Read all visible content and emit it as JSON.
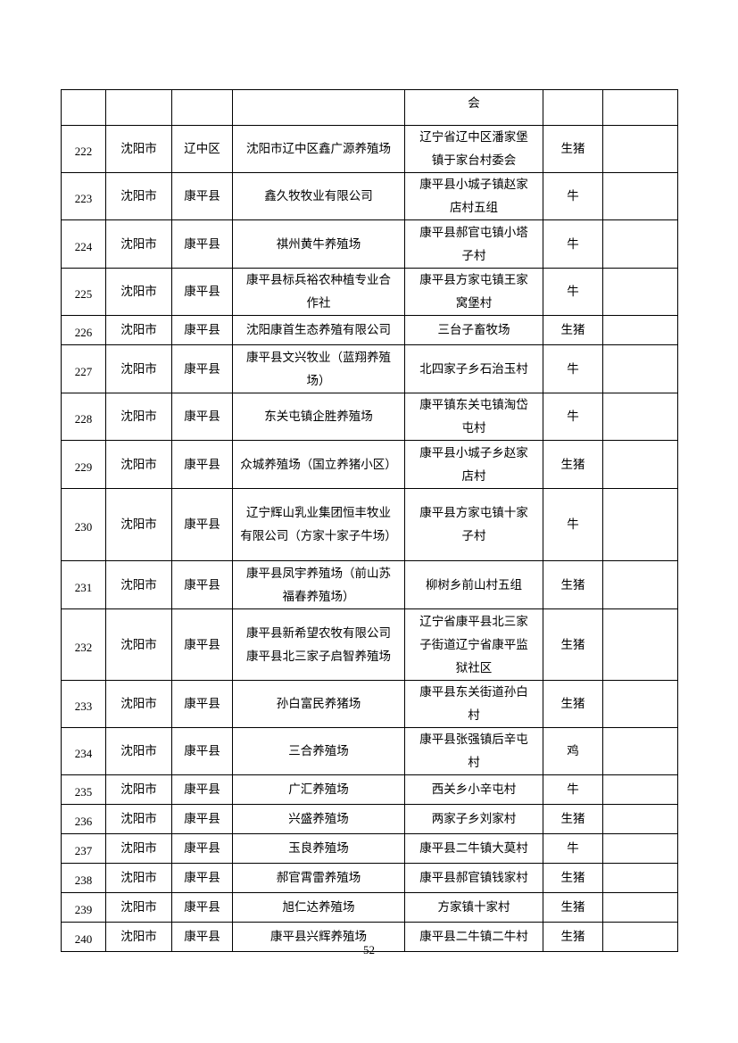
{
  "table": {
    "rows": [
      {
        "no": "",
        "city": "",
        "county": "",
        "name": "",
        "address": "会",
        "type": "",
        "note": "",
        "h": 40
      },
      {
        "no": "222",
        "city": "沈阳市",
        "county": "辽中区",
        "name": "沈阳市辽中区鑫广源养殖场",
        "address": "辽宁省辽中区潘家堡\n镇于家台村委会",
        "type": "生猪",
        "note": "",
        "h": 53
      },
      {
        "no": "223",
        "city": "沈阳市",
        "county": "康平县",
        "name": "鑫久牧牧业有限公司",
        "address": "康平县小城子镇赵家\n店村五组",
        "type": "牛",
        "note": "",
        "h": 53
      },
      {
        "no": "224",
        "city": "沈阳市",
        "county": "康平县",
        "name": "祺州黄牛养殖场",
        "address": "康平县郝官屯镇小塔\n子村",
        "type": "牛",
        "note": "",
        "h": 54
      },
      {
        "no": "225",
        "city": "沈阳市",
        "county": "康平县",
        "name": "康平县标兵裕农种植专业合\n作社",
        "address": "康平县方家屯镇王家\n窝堡村",
        "type": "牛",
        "note": "",
        "h": 53
      },
      {
        "no": "226",
        "city": "沈阳市",
        "county": "康平县",
        "name": "沈阳康首生态养殖有限公司",
        "address": "三台子畜牧场",
        "type": "生猪",
        "note": "",
        "h": 27
      },
      {
        "no": "227",
        "city": "沈阳市",
        "county": "康平县",
        "name": "康平县文兴牧业（蓝翔养殖\n场）",
        "address": "北四家子乡石治玉村",
        "type": "牛",
        "note": "",
        "h": 54
      },
      {
        "no": "228",
        "city": "沈阳市",
        "county": "康平县",
        "name": "东关屯镇企胜养殖场",
        "address": "康平镇东关屯镇淘岱\n屯村",
        "type": "牛",
        "note": "",
        "h": 53
      },
      {
        "no": "229",
        "city": "沈阳市",
        "county": "康平县",
        "name": "众城养殖场（国立养猪小区）\n ",
        "address": "康平县小城子乡赵家\n店村",
        "type": "生猪",
        "note": "",
        "h": 54
      },
      {
        "no": "230",
        "city": "沈阳市",
        "county": "康平县",
        "name": "辽宁辉山乳业集团恒丰牧业\n有限公司（方家十家子牛场）\n ",
        "address": "康平县方家屯镇十家\n子村",
        "type": "牛",
        "note": "",
        "h": 81
      },
      {
        "no": "231",
        "city": "沈阳市",
        "county": "康平县",
        "name": "康平县凤宇养殖场（前山苏\n福春养殖场）",
        "address": "柳树乡前山村五组",
        "type": "生猪",
        "note": "",
        "h": 54
      },
      {
        "no": "232",
        "city": "沈阳市",
        "county": "康平县",
        "name": "康平县新希望农牧有限公司\n康平县北三家子启智养殖场",
        "address": "辽宁省康平县北三家\n子街道辽宁省康平监\n狱社区",
        "type": "生猪",
        "note": "",
        "h": 80
      },
      {
        "no": "233",
        "city": "沈阳市",
        "county": "康平县",
        "name": "孙白富民养猪场",
        "address": "康平县东关街道孙白\n村",
        "type": "生猪",
        "note": "",
        "h": 53
      },
      {
        "no": "234",
        "city": "沈阳市",
        "county": "康平县",
        "name": "三合养殖场",
        "address": "康平县张强镇后辛屯\n村",
        "type": "鸡",
        "note": "",
        "h": 53
      },
      {
        "no": "235",
        "city": "沈阳市",
        "county": "康平县",
        "name": "广汇养殖场",
        "address": "西关乡小辛屯村",
        "type": "牛",
        "note": "",
        "h": 27
      },
      {
        "no": "236",
        "city": "沈阳市",
        "county": "康平县",
        "name": "兴盛养殖场",
        "address": "两家子乡刘家村",
        "type": "生猪",
        "note": "",
        "h": 27
      },
      {
        "no": "237",
        "city": "沈阳市",
        "county": "康平县",
        "name": "玉良养殖场",
        "address": "康平县二牛镇大莫村",
        "type": "牛",
        "note": "",
        "h": 27
      },
      {
        "no": "238",
        "city": "沈阳市",
        "county": "康平县",
        "name": "郝官霄雷养殖场",
        "address": "康平县郝官镇钱家村",
        "type": "生猪",
        "note": "",
        "h": 27
      },
      {
        "no": "239",
        "city": "沈阳市",
        "county": "康平县",
        "name": "旭仁达养殖场",
        "address": "方家镇十家村",
        "type": "生猪",
        "note": "",
        "h": 27
      },
      {
        "no": "240",
        "city": "沈阳市",
        "county": "康平县",
        "name": "康平县兴辉养殖场",
        "address": "康平县二牛镇二牛村",
        "type": "生猪",
        "note": "",
        "h": 27
      }
    ]
  },
  "footer": {
    "page_number": "52"
  }
}
